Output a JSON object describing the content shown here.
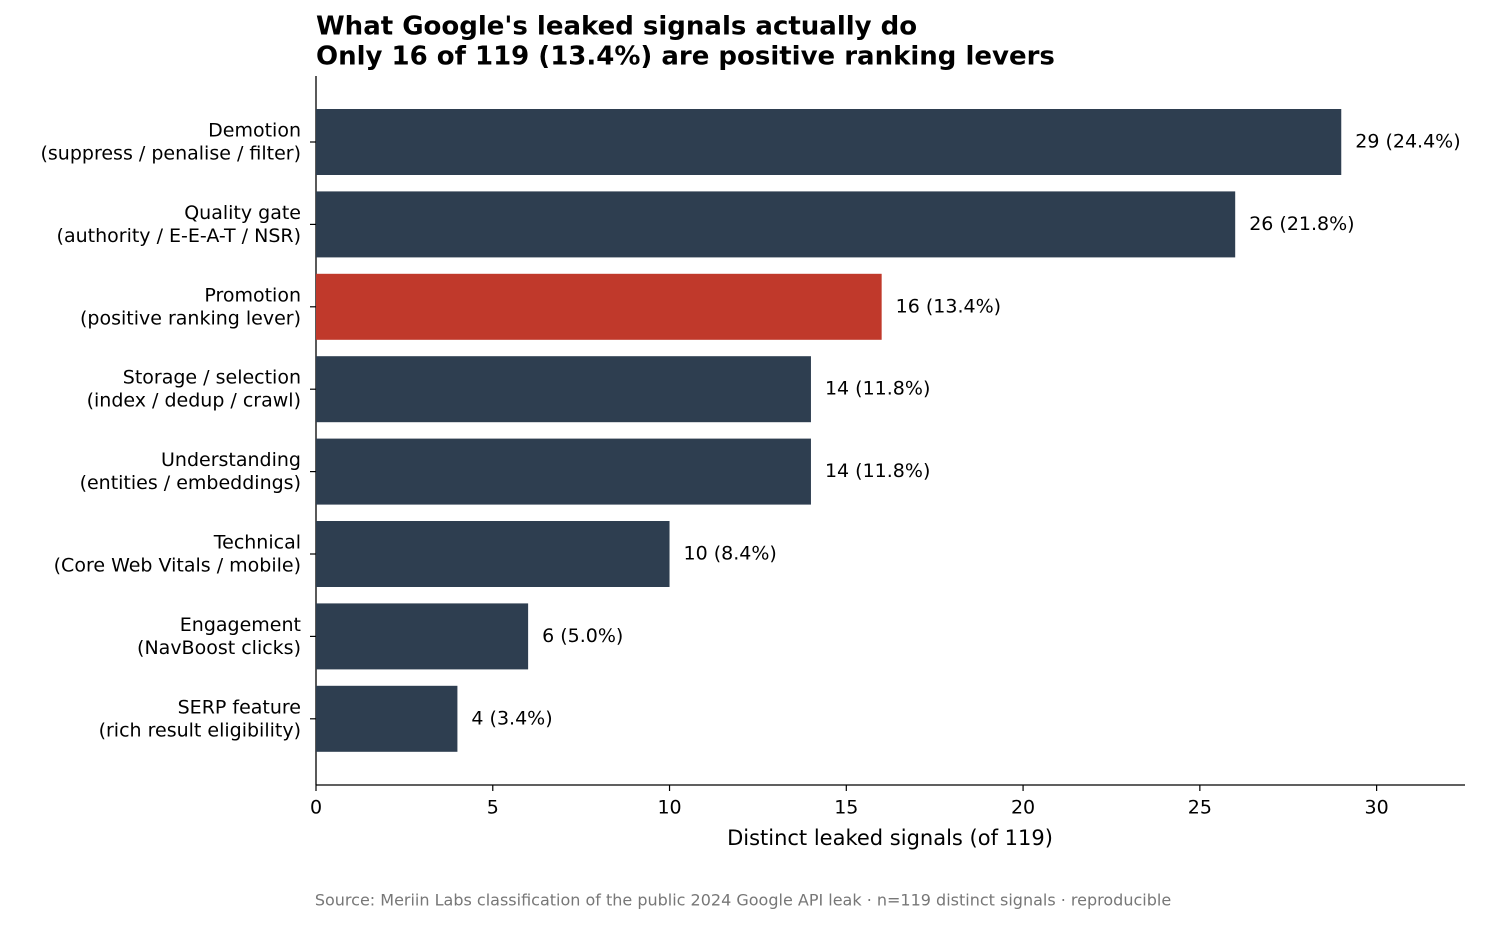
{
  "chart_data": {
    "type": "barh",
    "title": "What Google's leaked signals actually do",
    "subtitle": "Only 16 of 119 (13.4%) are positive ranking levers",
    "categories": [
      "Demotion\n(suppress / penalise / filter)",
      "Quality gate\n(authority / E-E-A-T / NSR)",
      "Promotion\n(positive ranking lever)",
      "Storage / selection\n(index / dedup / crawl)",
      "Understanding\n(entities / embeddings)",
      "Technical\n(Core Web Vitals / mobile)",
      "Engagement\n(NavBoost clicks)",
      "SERP feature\n(rich result eligibility)"
    ],
    "values": [
      29,
      26,
      16,
      14,
      14,
      10,
      6,
      4
    ],
    "value_labels": [
      "29  (24.4%)",
      "26  (21.8%)",
      "16  (13.4%)",
      "14  (11.8%)",
      "14  (11.8%)",
      "10  (8.4%)",
      "6  (5.0%)",
      "4  (3.4%)"
    ],
    "colors": [
      "#2e3e50",
      "#2e3e50",
      "#c0392b",
      "#2e3e50",
      "#2e3e50",
      "#2e3e50",
      "#2e3e50",
      "#2e3e50"
    ],
    "xlabel": "Distinct leaked signals (of 119)",
    "xlim": [
      0,
      32.5
    ],
    "xticks": [
      0,
      5,
      10,
      15,
      20,
      25,
      30
    ],
    "source": "Source: Meriin Labs classification of the public 2024 Google API leak · n=119 distinct signals · reproducible"
  }
}
